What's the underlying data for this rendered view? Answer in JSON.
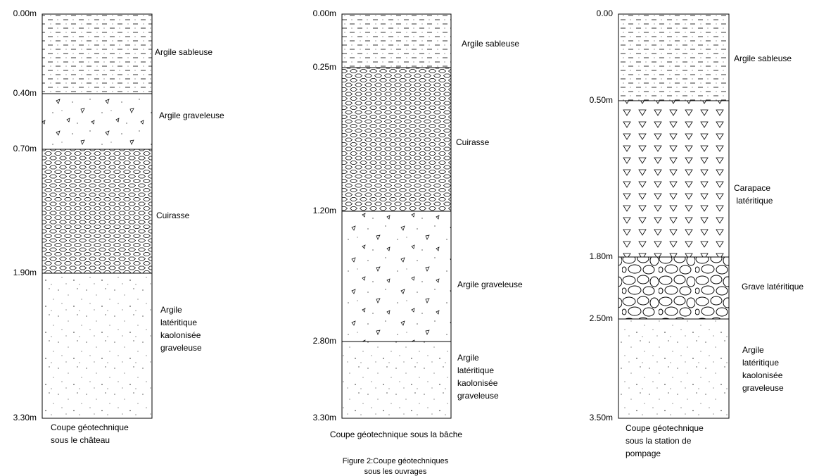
{
  "columns": [
    {
      "depths": [
        "0.00m",
        "0.40m",
        "0.70m",
        "1.90m",
        "3.30m"
      ],
      "layers": [
        [
          "Argile sableuse"
        ],
        [
          "Argile graveleuse"
        ],
        [
          "Cuirasse"
        ],
        [
          "Argile",
          "latéritique",
          "kaolonisée",
          "graveleuse"
        ]
      ],
      "caption": [
        "Coupe géotechnique",
        "sous le château"
      ]
    },
    {
      "depths": [
        "0.00m",
        "0.25m",
        "1.20m",
        "2.80m",
        "3.30m"
      ],
      "layers": [
        [
          "Argile sableuse"
        ],
        [
          "Cuirasse"
        ],
        [
          "Argile graveleuse"
        ],
        [
          "Argile",
          "latéritique",
          "kaolonisée",
          "graveleuse"
        ]
      ],
      "caption": [
        "Coupe géotechnique sous la bâche"
      ]
    },
    {
      "depths": [
        "0.00",
        "0.50m",
        "1.80m",
        "2.50m",
        "3.50m"
      ],
      "layers": [
        [
          "Argile sableuse"
        ],
        [
          "Carapace",
          " latéritique"
        ],
        [
          "Grave latéritique"
        ],
        [
          "Argile",
          "latéritique",
          "kaolonisée",
          "graveleuse"
        ]
      ],
      "caption": [
        "Coupe géotechnique",
        "sous la station de",
        "pompage"
      ]
    }
  ],
  "figure_caption": [
    "Figure 2:Coupe géotechniques",
    "sous les ouvrages"
  ]
}
